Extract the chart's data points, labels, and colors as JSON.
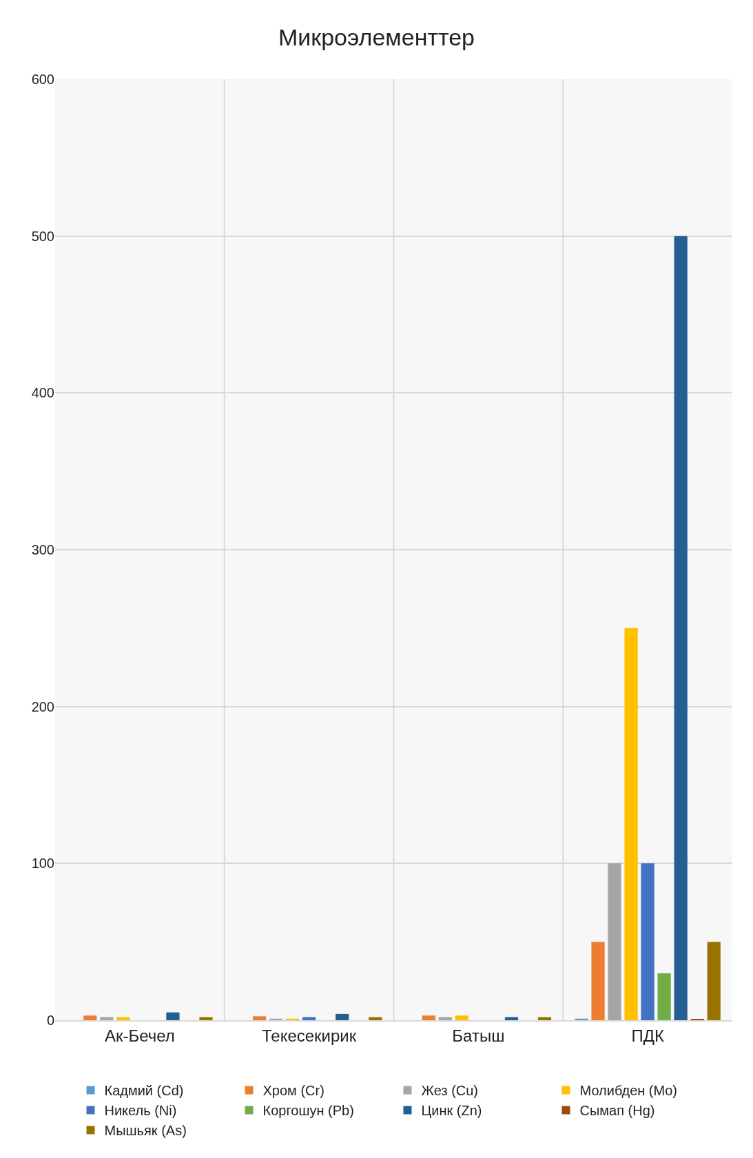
{
  "chart_data": {
    "type": "bar",
    "title": "Микроэлементтер",
    "categories": [
      "Ак-Бечел",
      "Текесекирик",
      "Батыш",
      "ПДК"
    ],
    "series": [
      {
        "name": "Кадмий (Cd)",
        "color": "#5b9bd5",
        "values": [
          0,
          0,
          0,
          1
        ]
      },
      {
        "name": "Хром (Cr)",
        "color": "#ed7d31",
        "values": [
          3,
          2.5,
          3,
          50
        ]
      },
      {
        "name": "Жез (Cu)",
        "color": "#a5a5a5",
        "values": [
          2,
          1,
          2,
          100
        ]
      },
      {
        "name": "Молибден (Mo)",
        "color": "#ffc000",
        "values": [
          2,
          1,
          3,
          250
        ]
      },
      {
        "name": "Никель (Ni)",
        "color": "#4472c4",
        "values": [
          0,
          2,
          0,
          100
        ]
      },
      {
        "name": "Коргошун (Pb)",
        "color": "#70ad47",
        "values": [
          0,
          0,
          0,
          30
        ]
      },
      {
        "name": "Цинк (Zn)",
        "color": "#255e91",
        "values": [
          5,
          4,
          2,
          500
        ]
      },
      {
        "name": "Сымап (Hg)",
        "color": "#9e480e",
        "values": [
          0,
          0,
          0,
          0.5
        ]
      },
      {
        "name": "Мышьяк (As)",
        "color": "#997300",
        "values": [
          2,
          2,
          2,
          50
        ]
      }
    ],
    "ylim": [
      0,
      600
    ],
    "yticks": [
      0,
      100,
      200,
      300,
      400,
      500,
      600
    ],
    "grid": "y",
    "legend": "bottom"
  }
}
